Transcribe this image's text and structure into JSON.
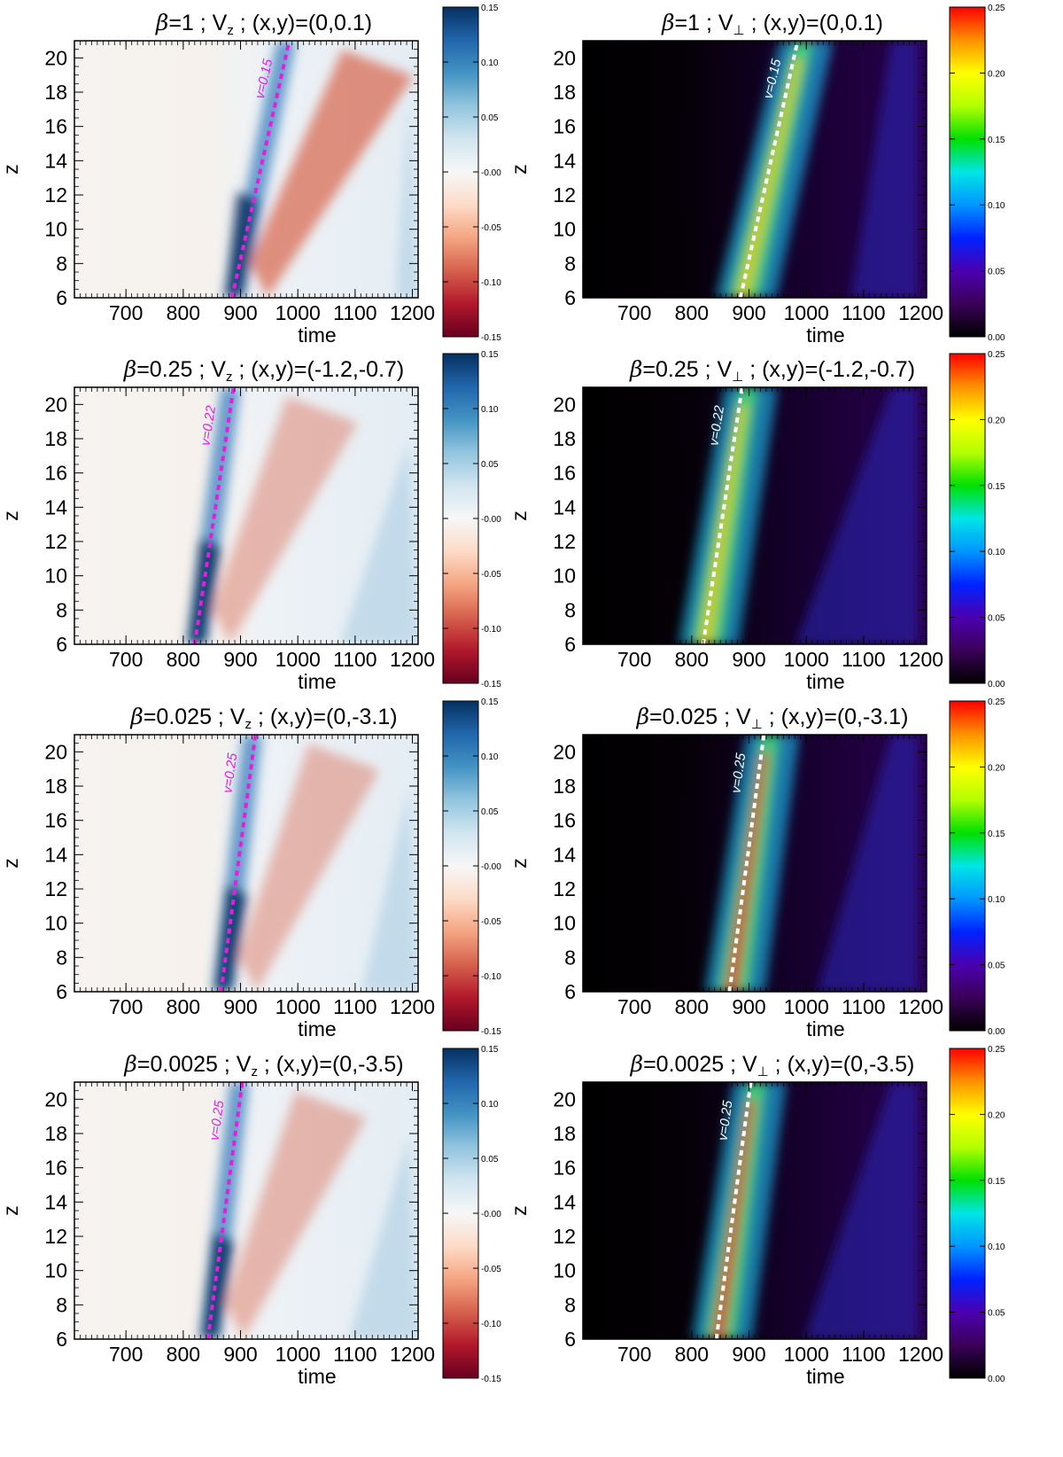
{
  "figure": {
    "x_label": "time",
    "y_label": "z",
    "x_ticks": [
      "700",
      "800",
      "900",
      "1000",
      "1100",
      "1200"
    ],
    "y_ticks": [
      "6",
      "8",
      "10",
      "12",
      "14",
      "16",
      "18",
      "20"
    ],
    "colors": {
      "vz_map": [
        "#67001f",
        "#b2182b",
        "#d6604d",
        "#f4a582",
        "#fddbc7",
        "#f7f7f7",
        "#d1e5f0",
        "#92c5de",
        "#4393c3",
        "#2166ac",
        "#053061"
      ],
      "vperp_map": [
        "#000000",
        "#3a0057",
        "#4b00b0",
        "#0022ff",
        "#0096ff",
        "#00e6e6",
        "#00e000",
        "#b4ff00",
        "#ffff00",
        "#ff9000",
        "#ff0000"
      ],
      "vz_line": "#e020e0",
      "vperp_line": "#ffffff"
    }
  },
  "chart_data": [
    {
      "type": "heatmap",
      "title_beta": "β",
      "title_rest": "=1 ; V",
      "title_sub": "z",
      "title_tail": " ; (x,y)=(0,0.1)",
      "variable": "Vz",
      "xlim": [
        610,
        1210
      ],
      "ylim": [
        6,
        21
      ],
      "line_label": "v=0.15",
      "line": {
        "x": [
          885,
          985
        ],
        "y": [
          6,
          21
        ]
      },
      "colorbar": {
        "min": -0.15,
        "max": 0.15,
        "ticks": [
          "0.15",
          "0.10",
          "0.05",
          "-0.00",
          "-0.05",
          "-0.10",
          "-0.15"
        ]
      }
    },
    {
      "type": "heatmap",
      "title_beta": "β",
      "title_rest": "=1 ; V",
      "title_sub": "⊥",
      "title_tail": " ; (x,y)=(0,0.1)",
      "variable": "Vperp",
      "xlim": [
        610,
        1210
      ],
      "ylim": [
        6,
        21
      ],
      "line_label": "v=0.15",
      "line": {
        "x": [
          885,
          985
        ],
        "y": [
          6,
          21
        ]
      },
      "colorbar": {
        "min": 0,
        "max": 0.25,
        "ticks": [
          "0.25",
          "0.20",
          "0.15",
          "0.10",
          "0.05",
          "0.00"
        ]
      }
    },
    {
      "type": "heatmap",
      "title_beta": "β",
      "title_rest": "=0.25 ; V",
      "title_sub": "z",
      "title_tail": " ; (x,y)=(-1.2,-0.7)",
      "variable": "Vz",
      "xlim": [
        610,
        1210
      ],
      "ylim": [
        6,
        21
      ],
      "line_label": "v=0.22",
      "line": {
        "x": [
          820,
          888
        ],
        "y": [
          6,
          21
        ]
      },
      "colorbar": {
        "min": -0.15,
        "max": 0.15,
        "ticks": [
          "0.15",
          "0.10",
          "0.05",
          "-0.00",
          "-0.05",
          "-0.10",
          "-0.15"
        ]
      }
    },
    {
      "type": "heatmap",
      "title_beta": "β",
      "title_rest": "=0.25 ; V",
      "title_sub": "⊥",
      "title_tail": " ; (x,y)=(-1.2,-0.7)",
      "variable": "Vperp",
      "xlim": [
        610,
        1210
      ],
      "ylim": [
        6,
        21
      ],
      "line_label": "v=0.22",
      "line": {
        "x": [
          820,
          888
        ],
        "y": [
          6,
          21
        ]
      },
      "colorbar": {
        "min": 0,
        "max": 0.25,
        "ticks": [
          "0.25",
          "0.20",
          "0.15",
          "0.10",
          "0.05",
          "0.00"
        ]
      }
    },
    {
      "type": "heatmap",
      "title_beta": "β",
      "title_rest": "=0.025 ; V",
      "title_sub": "z",
      "title_tail": " ; (x,y)=(0,-3.1)",
      "variable": "Vz",
      "xlim": [
        610,
        1210
      ],
      "ylim": [
        6,
        21
      ],
      "line_label": "v=0.25",
      "line": {
        "x": [
          866,
          926
        ],
        "y": [
          6,
          21
        ]
      },
      "colorbar": {
        "min": -0.15,
        "max": 0.15,
        "ticks": [
          "0.15",
          "0.10",
          "0.05",
          "-0.00",
          "-0.05",
          "-0.10",
          "-0.15"
        ]
      }
    },
    {
      "type": "heatmap",
      "title_beta": "β",
      "title_rest": "=0.025 ; V",
      "title_sub": "⊥",
      "title_tail": " ; (x,y)=(0,-3.1)",
      "variable": "Vperp",
      "xlim": [
        610,
        1210
      ],
      "ylim": [
        6,
        21
      ],
      "line_label": "v=0.25",
      "line": {
        "x": [
          866,
          926
        ],
        "y": [
          6,
          21
        ]
      },
      "colorbar": {
        "min": 0,
        "max": 0.25,
        "ticks": [
          "0.25",
          "0.20",
          "0.15",
          "0.10",
          "0.05",
          "0.00"
        ]
      }
    },
    {
      "type": "heatmap",
      "title_beta": "β",
      "title_rest": "=0.0025 ; V",
      "title_sub": "z",
      "title_tail": " ; (x,y)=(0,-3.5)",
      "variable": "Vz",
      "xlim": [
        610,
        1210
      ],
      "ylim": [
        6,
        21
      ],
      "line_label": "v=0.25",
      "line": {
        "x": [
          843,
          903
        ],
        "y": [
          6,
          21
        ]
      },
      "colorbar": {
        "min": -0.15,
        "max": 0.15,
        "ticks": [
          "0.15",
          "0.10",
          "0.05",
          "-0.00",
          "-0.05",
          "-0.10",
          "-0.15"
        ]
      }
    },
    {
      "type": "heatmap",
      "title_beta": "β",
      "title_rest": "=0.0025 ; V",
      "title_sub": "⊥",
      "title_tail": " ; (x,y)=(0,-3.5)",
      "variable": "Vperp",
      "xlim": [
        610,
        1210
      ],
      "ylim": [
        6,
        21
      ],
      "line_label": "v=0.25",
      "line": {
        "x": [
          843,
          903
        ],
        "y": [
          6,
          21
        ]
      },
      "colorbar": {
        "min": 0,
        "max": 0.25,
        "ticks": [
          "0.25",
          "0.20",
          "0.15",
          "0.10",
          "0.05",
          "0.00"
        ]
      }
    }
  ]
}
